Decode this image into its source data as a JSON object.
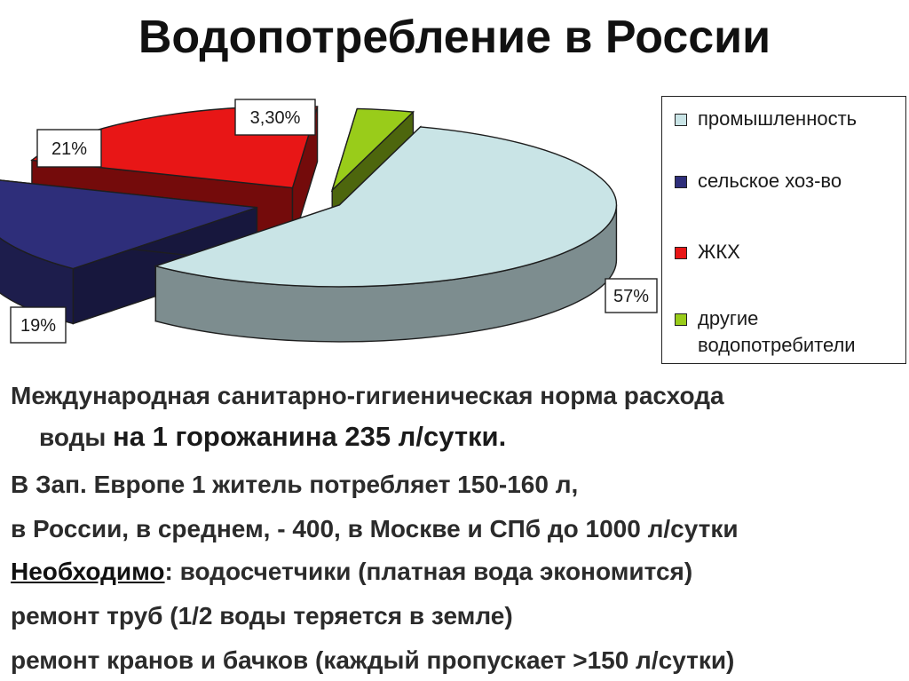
{
  "page": {
    "title": "Водопотребление в России"
  },
  "chart_data": {
    "type": "pie",
    "title": "",
    "categories": [
      "промышленность",
      "сельское хоз-во",
      "ЖКХ",
      "другие водопотребители"
    ],
    "values": [
      57,
      19,
      21,
      3.3
    ],
    "data_labels": [
      "57%",
      "19%",
      "21%",
      "3,30%"
    ],
    "colors": [
      "#c9e4e6",
      "#2e2e7a",
      "#e81616",
      "#99cc1a"
    ],
    "exploded": true,
    "three_d": true,
    "legend": {
      "placement": "right",
      "items": [
        "промышленность",
        "сельское хоз-во",
        "ЖКХ"
      ],
      "last_item_lines": [
        "другие",
        "водопотребители"
      ]
    }
  },
  "text": {
    "line1": "Международная санитарно-гигиеническая норма расхода",
    "line2_a": "воды ",
    "line2_b": "на 1 горожанина 235 л/сутки.",
    "line3": "В Зап. Европе 1 житель потребляет 150-160 л,",
    "line4": "в России, в среднем, - 400, в Москве и СПб до 1000 л/сутки",
    "line5_a": "Необходимо",
    "line5_b": ": водосчетчики (платная вода экономится)",
    "line6": "ремонт труб (1/2 воды теряется в земле)",
    "line7": "ремонт кранов и бачков (каждый пропускает >150 л/сутки)"
  }
}
